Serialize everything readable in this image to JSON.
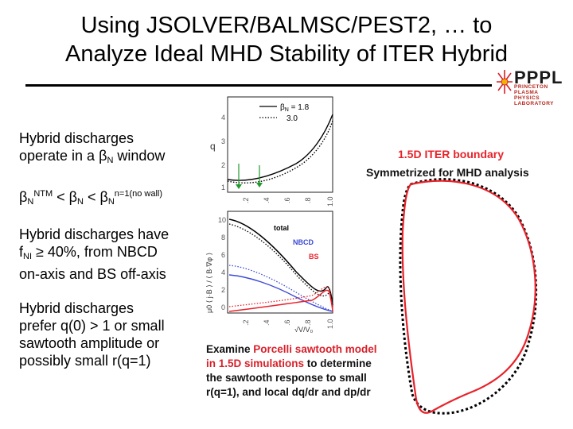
{
  "slide": {
    "title_line1": "Using JSOLVER/BALMSC/PEST2, … to",
    "title_line2": "Analyze Ideal MHD Stability of ITER Hybrid"
  },
  "logo": {
    "name": "PPPL",
    "sub_line1": "PRINCETON PLASMA",
    "sub_line2": "PHYSICS LABORATORY"
  },
  "bullets": {
    "b1_line1": "Hybrid discharges",
    "b1_line2_pre": "operate in a ",
    "b1_beta": "β",
    "b1_sub": "N",
    "b1_post": " window",
    "b2_beta1": "β",
    "b2_sub1": "N",
    "b2_sup1": "NTM",
    "b2_lt1": " < ",
    "b2_beta2": "β",
    "b2_sub2": "N",
    "b2_lt2": " < ",
    "b2_beta3": "β",
    "b2_sub3": "N",
    "b2_sup3": "n=1(no wall)",
    "b3_line1": "Hybrid discharges have",
    "b3_line2_pre": "f",
    "b3_sub": "NI",
    "b3_line2_post": " ≥ 40%, from NBCD",
    "b3_line3": "on-axis and BS off-axis",
    "b4_line1": "Hybrid discharges",
    "b4_line2": "prefer q(0) > 1 or small",
    "b4_line3": "sawtooth amplitude or",
    "b4_line4": "possibly small r(q=1)"
  },
  "q_plot": {
    "ylabel": "q",
    "legend_beta": "β",
    "legend_sub": "N",
    "legend_eq": " = 1.8",
    "legend_2": "3.0",
    "yticks": [
      "4",
      "3",
      "2",
      "1"
    ],
    "xticks": [
      ".2",
      ".4",
      ".6",
      ".8",
      "1.0"
    ]
  },
  "current_plot": {
    "ylabel": "μ0 ⟨ j·B ⟩ / ⟨ B·∇φ ⟩",
    "xlabel": "√V/V₀",
    "label_total": "total",
    "label_nbcd": "NBCD",
    "label_bs": "BS",
    "yticks": [
      "10",
      "8",
      "6",
      "4",
      "2",
      "0"
    ],
    "xticks": [
      ".2",
      ".4",
      ".6",
      ".8",
      "1.0"
    ],
    "colors": {
      "total": "#000000",
      "nbcd": "#3b49d6",
      "bs": "#e8222a"
    }
  },
  "boundary": {
    "title1": "1.5D ITER boundary",
    "title2": "Symmetrized for MHD analysis",
    "colors": {
      "iter": "#e8222a",
      "symmetrized": "#000000"
    }
  },
  "caption": {
    "pre": "Examine ",
    "highlight": "Porcelli sawtooth model in 1.5D simulations",
    "post": " to determine the sawtooth response to small r(q=1), and local dq/dr and dp/dr"
  }
}
